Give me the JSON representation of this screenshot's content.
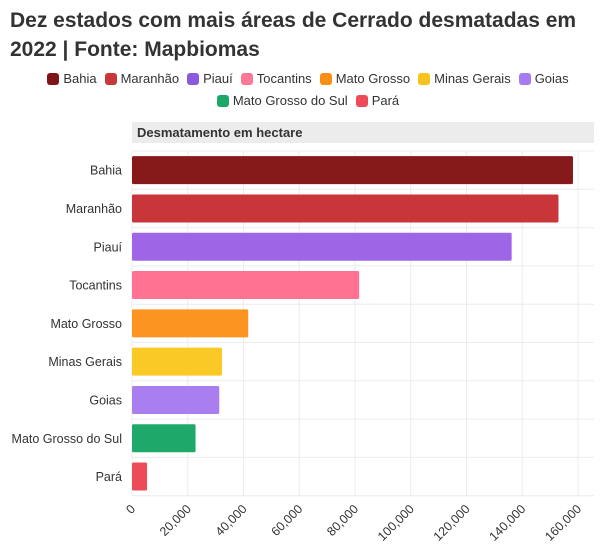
{
  "title": "Dez estados com mais áreas de Cerrado desmatadas em 2022 | Fonte: Mapbiomas",
  "legend": [
    {
      "label": "Bahia",
      "color": "#7f1416"
    },
    {
      "label": "Maranhão",
      "color": "#c8383b"
    },
    {
      "label": "Piauí",
      "color": "#8c5adf"
    },
    {
      "label": "Tocantins",
      "color": "#ff7896"
    },
    {
      "label": "Mato Grosso",
      "color": "#f98e15"
    },
    {
      "label": "Minas Gerais",
      "color": "#f7c31d"
    },
    {
      "label": "Goias",
      "color": "#a87cf1"
    },
    {
      "label": "Mato Grosso do Sul",
      "color": "#1ba868"
    },
    {
      "label": "Pará",
      "color": "#ee4b5a"
    }
  ],
  "chart_data": {
    "type": "bar",
    "orientation": "horizontal",
    "header": "Desmatamento em hectare",
    "categories": [
      "Bahia",
      "Maranhão",
      "Piauí",
      "Tocantins",
      "Mato Grosso",
      "Minas Gerais",
      "Goias",
      "Mato Grosso do Sul",
      "Pará"
    ],
    "values": [
      158200,
      153000,
      136200,
      81500,
      41700,
      32300,
      31300,
      22800,
      5400
    ],
    "colors": [
      "#861a1b",
      "#c9363a",
      "#9e66e6",
      "#fe7391",
      "#fb9420",
      "#fbc926",
      "#a97ff0",
      "#1ea96a",
      "#ec4b57"
    ],
    "xlim": [
      0,
      160000
    ],
    "xticks": [
      0,
      20000,
      40000,
      60000,
      80000,
      100000,
      120000,
      140000,
      160000
    ],
    "xtick_labels": [
      "0",
      "20,000",
      "40,000",
      "60,000",
      "80,000",
      "100,000",
      "120,000",
      "140,000",
      "160,000"
    ],
    "grid": true
  }
}
